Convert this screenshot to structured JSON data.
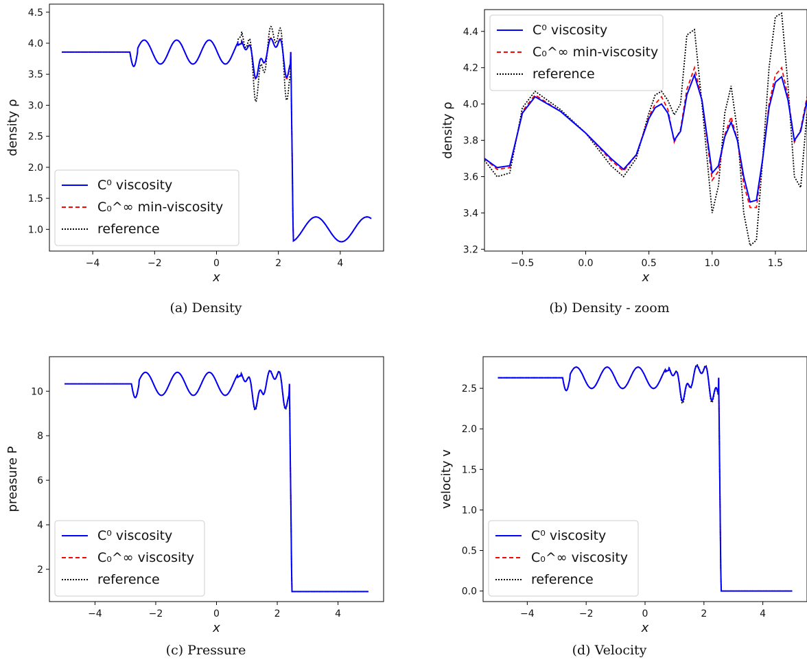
{
  "chart_data": [
    {
      "type": "line",
      "caption": "(a) Density",
      "xlabel": "x",
      "ylabel": "density ρ",
      "xlim": [
        -5.4,
        5.4
      ],
      "ylim": [
        0.65,
        4.63
      ],
      "xticks": [
        -4,
        -2,
        0,
        2,
        4
      ],
      "xtick_labels": [
        "−4",
        "−2",
        "0",
        "2",
        "4"
      ],
      "yticks": [
        1.0,
        1.5,
        2.0,
        2.5,
        3.0,
        3.5,
        4.0,
        4.5
      ],
      "ytick_labels": [
        "1.0",
        "1.5",
        "2.0",
        "2.5",
        "3.0",
        "3.5",
        "4.0",
        "4.5"
      ],
      "legend_position": "lower-left",
      "series": [
        {
          "name": "C⁰ viscosity",
          "color": "#0000ff",
          "style": "solid"
        },
        {
          "name": "C₀^∞ min-viscosity",
          "color": "#ff0000",
          "style": "dashed"
        },
        {
          "name": "reference",
          "color": "#000000",
          "style": "dotted"
        }
      ],
      "profile": {
        "left_state": 3.857,
        "x_start": -5,
        "x_wave_start": -2.8,
        "x_shock": 2.4,
        "x_end": 5,
        "right_mean": 1.0,
        "right_amp": 0.2,
        "right_freq": 5,
        "ref_amp_factor": 1.9,
        "red_amp_factor": 1.05
      }
    },
    {
      "type": "line",
      "caption": "(b) Density - zoom",
      "xlabel": "x",
      "ylabel": "density ρ",
      "xlim": [
        -0.8,
        1.75
      ],
      "ylim": [
        3.19,
        4.52
      ],
      "xticks": [
        -0.5,
        0.0,
        0.5,
        1.0,
        1.5
      ],
      "xtick_labels": [
        "−0.5",
        "0.0",
        "0.5",
        "1.0",
        "1.5"
      ],
      "yticks": [
        3.2,
        3.4,
        3.6,
        3.8,
        4.0,
        4.2,
        4.4
      ],
      "ytick_labels": [
        "3.2",
        "3.4",
        "3.6",
        "3.8",
        "4.0",
        "4.2",
        "4.4"
      ],
      "legend_position": "upper-left",
      "series": [
        {
          "name": "C⁰ viscosity",
          "color": "#0000ff",
          "style": "solid",
          "x": [
            -0.8,
            -0.7,
            -0.6,
            -0.5,
            -0.4,
            -0.2,
            0.0,
            0.2,
            0.3,
            0.4,
            0.5,
            0.55,
            0.6,
            0.65,
            0.7,
            0.75,
            0.8,
            0.86,
            0.92,
            1.0,
            1.05,
            1.1,
            1.15,
            1.2,
            1.25,
            1.3,
            1.35,
            1.4,
            1.45,
            1.5,
            1.55,
            1.6,
            1.65,
            1.7,
            1.75
          ],
          "y": [
            3.7,
            3.65,
            3.66,
            3.95,
            4.04,
            3.96,
            3.84,
            3.7,
            3.64,
            3.72,
            3.92,
            3.98,
            4.0,
            3.95,
            3.8,
            3.85,
            4.05,
            4.16,
            4.02,
            3.62,
            3.66,
            3.82,
            3.9,
            3.8,
            3.6,
            3.46,
            3.47,
            3.7,
            3.98,
            4.12,
            4.15,
            4.02,
            3.8,
            3.85,
            4.02
          ]
        },
        {
          "name": "C₀^∞ min-viscosity",
          "color": "#ff0000",
          "style": "dashed",
          "x": [
            -0.8,
            -0.7,
            -0.6,
            -0.5,
            -0.4,
            -0.2,
            0.0,
            0.2,
            0.3,
            0.4,
            0.5,
            0.55,
            0.6,
            0.65,
            0.7,
            0.75,
            0.8,
            0.86,
            0.92,
            1.0,
            1.05,
            1.1,
            1.15,
            1.2,
            1.25,
            1.3,
            1.35,
            1.4,
            1.45,
            1.5,
            1.55,
            1.6,
            1.65,
            1.7,
            1.75
          ],
          "y": [
            3.7,
            3.64,
            3.65,
            3.96,
            4.05,
            3.96,
            3.84,
            3.69,
            3.63,
            3.72,
            3.93,
            4.0,
            4.04,
            3.97,
            3.79,
            3.86,
            4.08,
            4.2,
            4.02,
            3.58,
            3.63,
            3.83,
            3.93,
            3.8,
            3.56,
            3.43,
            3.43,
            3.7,
            4.0,
            4.16,
            4.2,
            4.04,
            3.79,
            3.86,
            4.04
          ]
        },
        {
          "name": "reference",
          "color": "#000000",
          "style": "dotted",
          "x": [
            -0.8,
            -0.7,
            -0.6,
            -0.5,
            -0.4,
            -0.2,
            0.0,
            0.2,
            0.3,
            0.4,
            0.5,
            0.55,
            0.6,
            0.65,
            0.7,
            0.75,
            0.8,
            0.86,
            0.92,
            1.0,
            1.05,
            1.1,
            1.15,
            1.2,
            1.25,
            1.3,
            1.35,
            1.4,
            1.45,
            1.5,
            1.55,
            1.6,
            1.65,
            1.7,
            1.75
          ],
          "y": [
            3.69,
            3.6,
            3.62,
            3.98,
            4.07,
            3.97,
            3.84,
            3.66,
            3.6,
            3.7,
            3.95,
            4.05,
            4.07,
            4.02,
            3.94,
            4.0,
            4.38,
            4.41,
            4.0,
            3.4,
            3.55,
            3.95,
            4.1,
            3.85,
            3.4,
            3.22,
            3.25,
            3.7,
            4.2,
            4.48,
            4.5,
            4.1,
            3.6,
            3.54,
            3.95
          ]
        }
      ]
    },
    {
      "type": "line",
      "caption": "(c) Pressure",
      "xlabel": "x",
      "ylabel": "preasure P",
      "xlim": [
        -5.5,
        5.5
      ],
      "ylim": [
        0.55,
        11.55
      ],
      "xticks": [
        -4,
        -2,
        0,
        2,
        4
      ],
      "xtick_labels": [
        "−4",
        "−2",
        "0",
        "2",
        "4"
      ],
      "yticks": [
        2,
        4,
        6,
        8,
        10
      ],
      "ytick_labels": [
        "2",
        "4",
        "6",
        "8",
        "10"
      ],
      "legend_position": "lower-left",
      "series": [
        {
          "name": "C⁰ viscosity",
          "color": "#0000ff",
          "style": "solid"
        },
        {
          "name": "C₀^∞ viscosity",
          "color": "#ff0000",
          "style": "dashed"
        },
        {
          "name": "reference",
          "color": "#000000",
          "style": "dotted"
        }
      ],
      "profile": {
        "left_state": 10.33,
        "x_start": -5,
        "x_wave_start": -2.8,
        "x_shock": 2.4,
        "x_end": 5,
        "right_mean": 1.0,
        "right_amp": 0.0,
        "right_freq": 5,
        "ref_amp_factor": 1.05,
        "red_amp_factor": 1.0
      }
    },
    {
      "type": "line",
      "caption": "(d) Velocity",
      "xlabel": "x",
      "ylabel": "velocity v",
      "xlim": [
        -5.5,
        5.5
      ],
      "ylim": [
        -0.13,
        2.89
      ],
      "xticks": [
        -4,
        -2,
        0,
        2,
        4
      ],
      "xtick_labels": [
        "−4",
        "−2",
        "0",
        "2",
        "4"
      ],
      "yticks": [
        0.0,
        0.5,
        1.0,
        1.5,
        2.0,
        2.5
      ],
      "ytick_labels": [
        "0.0",
        "0.5",
        "1.0",
        "1.5",
        "2.0",
        "2.5"
      ],
      "legend_position": "lower-left",
      "series": [
        {
          "name": "C⁰ viscosity",
          "color": "#0000ff",
          "style": "solid"
        },
        {
          "name": "C₀^∞ viscosity",
          "color": "#ff0000",
          "style": "dashed"
        },
        {
          "name": "reference",
          "color": "#000000",
          "style": "dotted"
        }
      ],
      "profile": {
        "left_state": 2.63,
        "x_start": -5,
        "x_wave_start": -2.8,
        "x_shock": 2.5,
        "x_end": 5,
        "right_mean": 0.0,
        "right_amp": 0.0,
        "right_freq": 5,
        "ref_amp_factor": 1.1,
        "red_amp_factor": 1.0
      }
    }
  ]
}
